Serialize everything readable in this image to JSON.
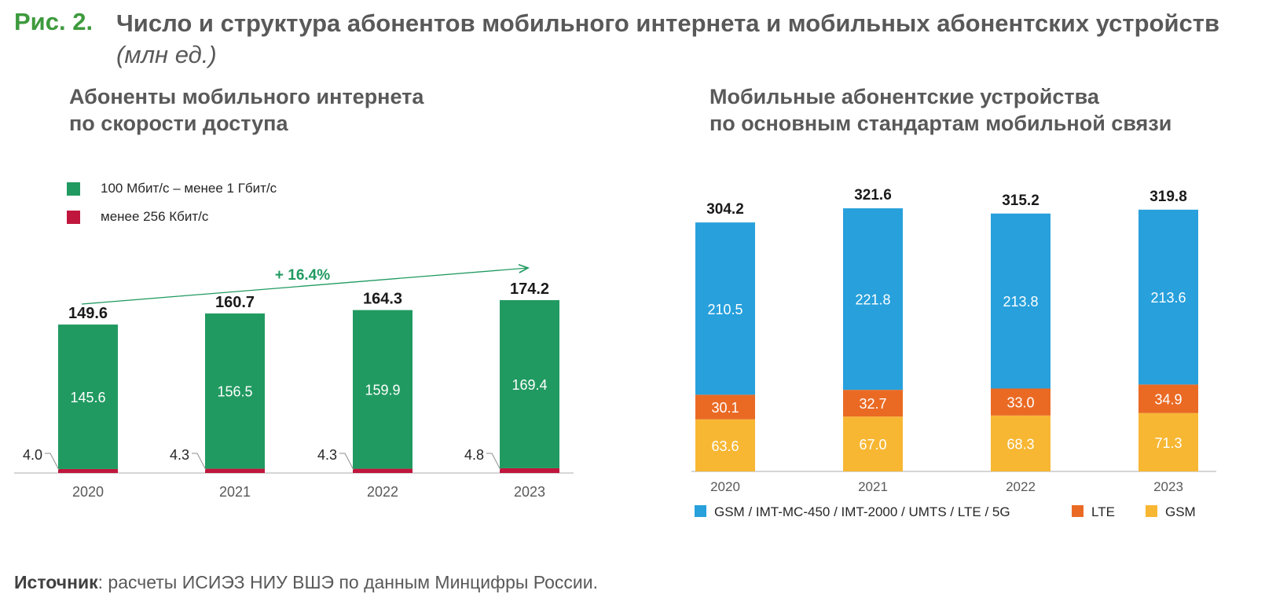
{
  "figure": {
    "label": "Рис. 2.",
    "title": "Число и структура абонентов мобильного интернета и мобильных абонентских устройств",
    "units": "(млн ед.)"
  },
  "colors": {
    "green": "#219a61",
    "red": "#c0163d",
    "blue": "#27a0dc",
    "orange": "#ea6a24",
    "yellow": "#f7b733",
    "figure_label": "#3d9a3d",
    "text": "#595959"
  },
  "growth_annotation": "+ 16.4%",
  "source": {
    "label": "Источник",
    "text": ": расчеты ИСИЭЗ НИУ ВШЭ по данным Минцифры России."
  },
  "chart_data": [
    {
      "type": "bar",
      "stacked": true,
      "title_lines": [
        "Абоненты мобильного интернета",
        "по скорости доступа"
      ],
      "categories": [
        "2020",
        "2021",
        "2022",
        "2023"
      ],
      "series": [
        {
          "name": "менее 256 Кбит/с",
          "values": [
            4.0,
            4.3,
            4.3,
            4.8
          ],
          "color": "#c0163d"
        },
        {
          "name": "100 Мбит/с – менее 1 Гбит/с",
          "values": [
            145.6,
            156.5,
            159.9,
            169.4
          ],
          "color": "#219a61"
        }
      ],
      "totals": [
        149.6,
        160.7,
        164.3,
        174.2
      ],
      "legend_position": "top-left",
      "ylim": [
        0,
        174.2
      ],
      "grid": false
    },
    {
      "type": "bar",
      "stacked": true,
      "title_lines": [
        "Мобильные абонентские устройства",
        "по основным стандартам мобильной связи"
      ],
      "categories": [
        "2020",
        "2021",
        "2022",
        "2023"
      ],
      "series": [
        {
          "name": "GSM",
          "values": [
            63.6,
            67.0,
            68.3,
            71.3
          ],
          "color": "#f7b733"
        },
        {
          "name": "LTE",
          "values": [
            30.1,
            32.7,
            33.0,
            34.9
          ],
          "color": "#ea6a24"
        },
        {
          "name": "GSM / IMT-MC-450 / IMT-2000 / UMTS / LTE / 5G",
          "values": [
            210.5,
            221.8,
            213.8,
            213.6
          ],
          "color": "#27a0dc"
        }
      ],
      "totals": [
        304.2,
        321.6,
        315.2,
        319.8
      ],
      "legend_position": "bottom",
      "ylim": [
        0,
        321.6
      ],
      "grid": false
    }
  ]
}
